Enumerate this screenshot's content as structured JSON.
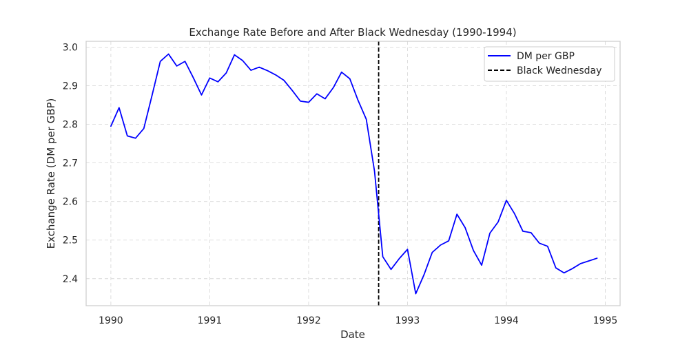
{
  "chart_data": {
    "type": "line",
    "title": "Exchange Rate Before and After Black Wednesday (1990-1994)",
    "xlabel": "Date",
    "ylabel": "Exchange Rate (DM per GBP)",
    "xlim": [
      1989.75,
      1995.15
    ],
    "ylim": [
      2.33,
      3.015
    ],
    "x_ticks": [
      1990,
      1991,
      1992,
      1993,
      1994,
      1995
    ],
    "x_tick_labels": [
      "1990",
      "1991",
      "1992",
      "1993",
      "1994",
      "1995"
    ],
    "y_ticks": [
      2.4,
      2.5,
      2.6,
      2.7,
      2.8,
      2.9,
      3.0
    ],
    "y_tick_labels": [
      "2.4",
      "2.5",
      "2.6",
      "2.7",
      "2.8",
      "2.9",
      "3.0"
    ],
    "grid": true,
    "legend_position": "top-right",
    "series": [
      {
        "name": "DM per GBP",
        "color": "#0000ff",
        "x": [
          1990.0,
          1990.0833,
          1990.1667,
          1990.25,
          1990.3333,
          1990.4167,
          1990.5,
          1990.5833,
          1990.6667,
          1990.75,
          1990.8333,
          1990.9167,
          1991.0,
          1991.0833,
          1991.1667,
          1991.25,
          1991.3333,
          1991.4167,
          1991.5,
          1991.5833,
          1991.6667,
          1991.75,
          1991.8333,
          1991.9167,
          1992.0,
          1992.0833,
          1992.1667,
          1992.25,
          1992.3333,
          1992.4167,
          1992.5,
          1992.5833,
          1992.6667,
          1992.75,
          1992.8333,
          1992.9167,
          1993.0,
          1993.0833,
          1993.1667,
          1993.25,
          1993.3333,
          1993.4167,
          1993.5,
          1993.5833,
          1993.6667,
          1993.75,
          1993.8333,
          1993.9167,
          1994.0,
          1994.0833,
          1994.1667,
          1994.25,
          1994.3333,
          1994.4167,
          1994.5,
          1994.5833,
          1994.6667,
          1994.75,
          1994.8333,
          1994.9167
        ],
        "y": [
          2.795,
          2.843,
          2.77,
          2.764,
          2.789,
          2.875,
          2.963,
          2.982,
          2.951,
          2.963,
          2.921,
          2.876,
          2.92,
          2.91,
          2.933,
          2.98,
          2.965,
          2.94,
          2.948,
          2.939,
          2.928,
          2.914,
          2.888,
          2.86,
          2.857,
          2.879,
          2.866,
          2.895,
          2.935,
          2.918,
          2.862,
          2.813,
          2.678,
          2.457,
          2.424,
          2.452,
          2.476,
          2.361,
          2.41,
          2.468,
          2.487,
          2.498,
          2.567,
          2.532,
          2.473,
          2.435,
          2.518,
          2.547,
          2.603,
          2.568,
          2.523,
          2.519,
          2.492,
          2.484,
          2.428,
          2.415,
          2.426,
          2.439,
          2.446,
          2.453
        ]
      }
    ],
    "events": [
      {
        "name": "Black Wednesday",
        "x": 1992.7083,
        "color": "#000000",
        "style": "dashed"
      }
    ]
  }
}
